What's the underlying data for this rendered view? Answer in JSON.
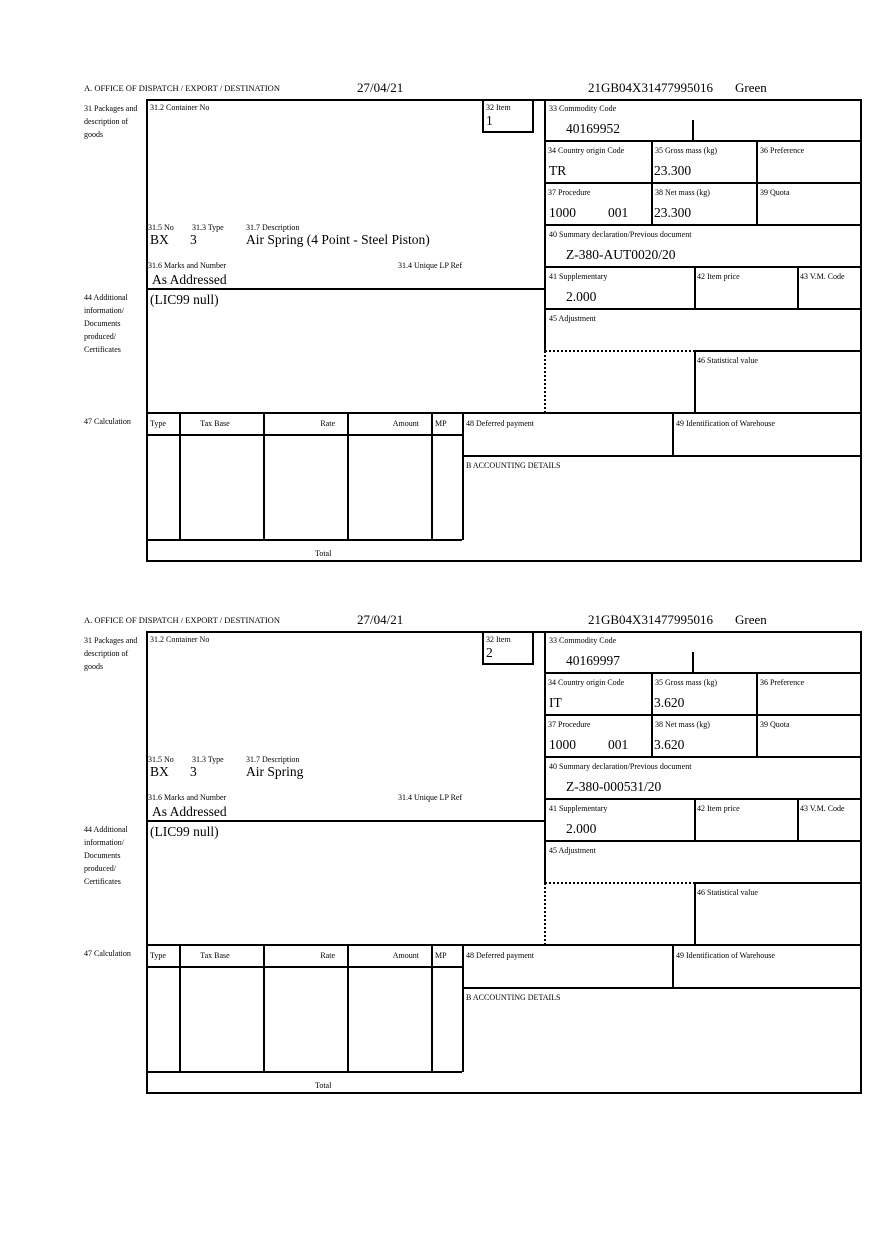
{
  "labels": {
    "office": "A. OFFICE OF DISPATCH / EXPORT / DESTINATION",
    "box31": "31 Packages and description of goods",
    "box31_2": "31.2 Container No",
    "box32": "32 Item",
    "box31_5": "31.5 No",
    "box31_3": "31.3 Type",
    "box31_7": "31.7 Description",
    "box31_6": "31.6 Marks and Number",
    "box31_4": "31.4 Unique LP Ref",
    "box33": "33 Commodity Code",
    "box34": "34 Country origin Code",
    "box35": "35 Gross mass (kg)",
    "box36": "36 Preference",
    "box37": "37 Procedure",
    "box38": "38 Net mass (kg)",
    "box39": "39 Quota",
    "box40": "40 Summary declaration/Previous document",
    "box41": "41 Supplementary",
    "box42": "42 Item price",
    "box43": "43 V.M. Code",
    "box44": "44 Additional information/ Documents produced/ Certificates",
    "box45": "45 Adjustment",
    "box46": "46 Statistical value",
    "box47": "47 Calculation",
    "calc_headers": [
      "Type",
      "Tax Base",
      "Rate",
      "Amount",
      "MP"
    ],
    "total": "Total",
    "box48": "48 Deferred payment",
    "box49": "49 Identification of Warehouse",
    "accounting": "B ACCOUNTING DETAILS"
  },
  "items": [
    {
      "date": "27/04/21",
      "reference": "21GB04X31477995016",
      "route": "Green",
      "item_no": "1",
      "packages_no": "BX",
      "packages_type": "3",
      "description": "Air Spring (4 Point - Steel Piston)",
      "marks": "As Addressed",
      "commodity_code": "40169952",
      "country_origin": "TR",
      "gross_mass": "23.300",
      "procedure": "1000",
      "procedure_additional": "001",
      "net_mass": "23.300",
      "previous_document": "Z-380-AUT0020/20",
      "supplementary": "2.000",
      "additional_info": "(LIC99 null)"
    },
    {
      "date": "27/04/21",
      "reference": "21GB04X31477995016",
      "route": "Green",
      "item_no": "2",
      "packages_no": "BX",
      "packages_type": "3",
      "description": "Air Spring",
      "marks": "As Addressed",
      "commodity_code": "40169997",
      "country_origin": "IT",
      "gross_mass": "3.620",
      "procedure": "1000",
      "procedure_additional": "001",
      "net_mass": "3.620",
      "previous_document": "Z-380-000531/20",
      "supplementary": "2.000",
      "additional_info": "(LIC99 null)"
    }
  ]
}
